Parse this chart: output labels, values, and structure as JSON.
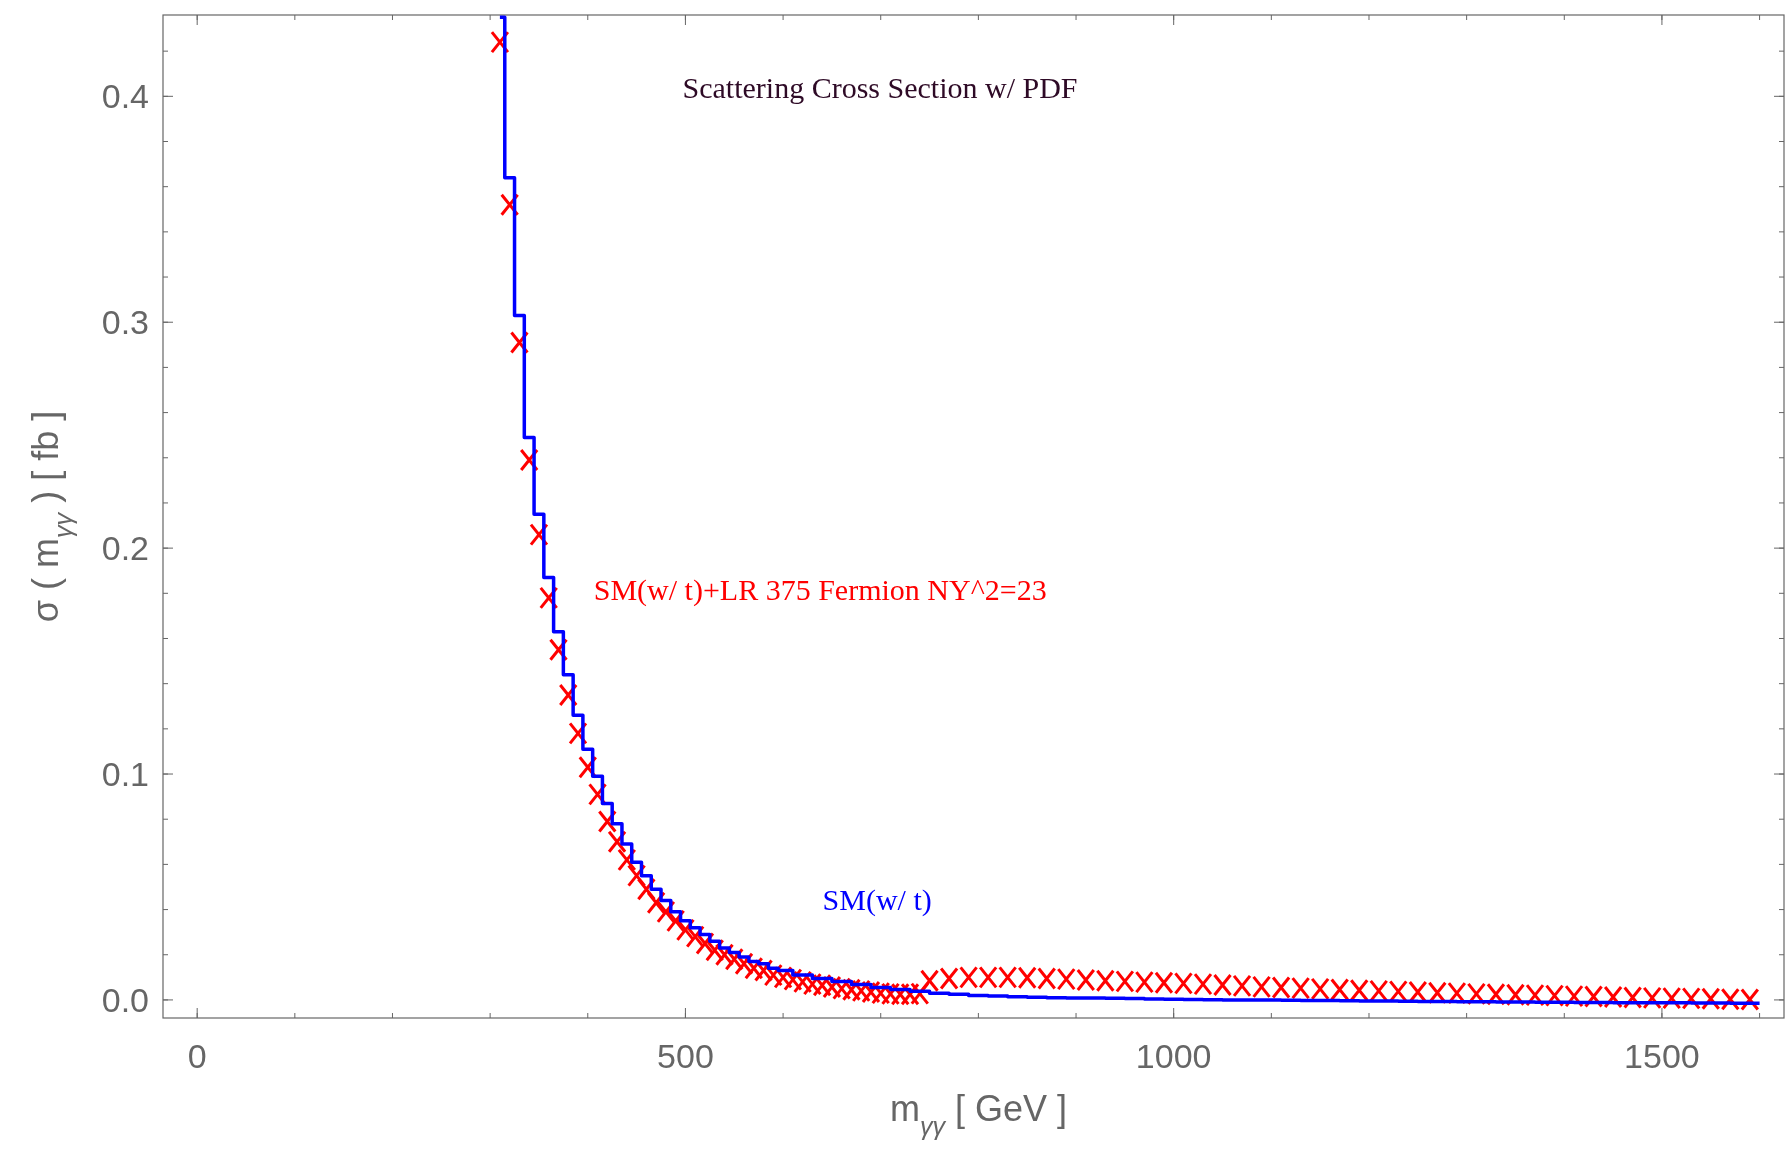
{
  "chart_data": {
    "type": "scatter",
    "title": "Scattering Cross Section w/ PDF",
    "xlabel": "m$_{γγ}$  [ GeV ]",
    "ylabel": "σ ( m$_{γγ}$ )  [ fb ]",
    "xlim": [
      -35,
      1625
    ],
    "ylim": [
      -0.008,
      0.436
    ],
    "xticks": [
      0,
      500,
      1000,
      1500
    ],
    "yticks": [
      {
        "value": 0,
        "label": "0.0"
      },
      {
        "value": 0.1,
        "label": "0.1"
      },
      {
        "value": 0.2,
        "label": "0.2"
      },
      {
        "value": 0.3,
        "label": "0.3"
      },
      {
        "value": 0.4,
        "label": "0.4"
      }
    ],
    "grid": false,
    "legend": false,
    "series": [
      {
        "name": "SM(w/ t)+LR 375 Fermion NY^2=23",
        "color": "#ff0000",
        "marker": "cross",
        "x": [
          310,
          320,
          330,
          340,
          350,
          360,
          370,
          380,
          390,
          400,
          410,
          420,
          430,
          440,
          450,
          460,
          470,
          480,
          490,
          500,
          510,
          520,
          530,
          540,
          550,
          560,
          570,
          580,
          590,
          600,
          610,
          620,
          630,
          640,
          650,
          660,
          670,
          680,
          690,
          700,
          710,
          720,
          730,
          740,
          750,
          770,
          790,
          810,
          830,
          850,
          870,
          890,
          910,
          930,
          950,
          970,
          990,
          1010,
          1030,
          1050,
          1070,
          1090,
          1110,
          1130,
          1150,
          1170,
          1190,
          1210,
          1230,
          1250,
          1270,
          1290,
          1310,
          1330,
          1350,
          1370,
          1390,
          1410,
          1430,
          1450,
          1470,
          1490,
          1510,
          1530,
          1550,
          1570,
          1590
        ],
        "values": [
          0.424,
          0.352,
          0.291,
          0.239,
          0.206,
          0.178,
          0.155,
          0.135,
          0.118,
          0.103,
          0.091,
          0.079,
          0.07,
          0.062,
          0.055,
          0.049,
          0.043,
          0.039,
          0.035,
          0.031,
          0.028,
          0.025,
          0.022,
          0.02,
          0.018,
          0.016,
          0.014,
          0.013,
          0.011,
          0.01,
          0.009,
          0.008,
          0.007,
          0.0065,
          0.0057,
          0.005,
          0.0045,
          0.004,
          0.0035,
          0.003,
          0.0027,
          0.0025,
          0.0025,
          0.0028,
          0.0085,
          0.0095,
          0.01,
          0.01,
          0.01,
          0.0098,
          0.0095,
          0.0092,
          0.0088,
          0.0085,
          0.0082,
          0.0079,
          0.0076,
          0.0073,
          0.007,
          0.0066,
          0.0062,
          0.0058,
          0.0055,
          0.0052,
          0.0049,
          0.0046,
          0.0043,
          0.004,
          0.0038,
          0.0035,
          0.0032,
          0.003,
          0.0027,
          0.0025,
          0.0023,
          0.0021,
          0.0019,
          0.0017,
          0.0015,
          0.0013,
          0.0011,
          0.0009,
          0.0008,
          0.0007,
          0.0005,
          0.0003,
          0.0002
        ]
      },
      {
        "name": "SM(w/ t)",
        "color": "#0000ff",
        "type": "step",
        "x": [
          310,
          320,
          330,
          340,
          350,
          360,
          370,
          380,
          390,
          400,
          410,
          420,
          430,
          440,
          450,
          460,
          470,
          480,
          490,
          500,
          510,
          520,
          530,
          540,
          550,
          560,
          570,
          580,
          590,
          600,
          620,
          640,
          660,
          680,
          700,
          720,
          740,
          760,
          780,
          800,
          820,
          840,
          860,
          880,
          900,
          920,
          940,
          960,
          980,
          1000,
          1020,
          1040,
          1060,
          1080,
          1100,
          1120,
          1140,
          1160,
          1180,
          1200,
          1220,
          1240,
          1260,
          1280,
          1300,
          1320,
          1340,
          1360,
          1380,
          1400,
          1420,
          1440,
          1460,
          1480,
          1500,
          1520,
          1540,
          1560,
          1580,
          1600
        ],
        "values": [
          0.435,
          0.364,
          0.303,
          0.249,
          0.215,
          0.187,
          0.163,
          0.144,
          0.126,
          0.111,
          0.099,
          0.087,
          0.078,
          0.069,
          0.061,
          0.055,
          0.049,
          0.044,
          0.039,
          0.035,
          0.032,
          0.029,
          0.026,
          0.023,
          0.021,
          0.019,
          0.017,
          0.016,
          0.014,
          0.013,
          0.011,
          0.0095,
          0.0082,
          0.0068,
          0.0055,
          0.0046,
          0.0038,
          0.003,
          0.0025,
          0.002,
          0.0017,
          0.0014,
          0.0012,
          0.001,
          0.0009,
          0.0008,
          0.0007,
          0.0006,
          0.0004,
          0.0003,
          0.0002,
          0.0001,
          0,
          0,
          0,
          -0.0001,
          -0.0002,
          -0.0003,
          -0.0004,
          -0.0005,
          -0.0005,
          -0.0006,
          -0.0007,
          -0.0007,
          -0.0008,
          -0.0008,
          -0.0009,
          -0.0009,
          -0.001,
          -0.001,
          -0.0011,
          -0.0011,
          -0.0012,
          -0.0012,
          -0.0013,
          -0.0013,
          -0.0014,
          -0.0014,
          -0.0015,
          -0.0015
        ]
      }
    ]
  }
}
